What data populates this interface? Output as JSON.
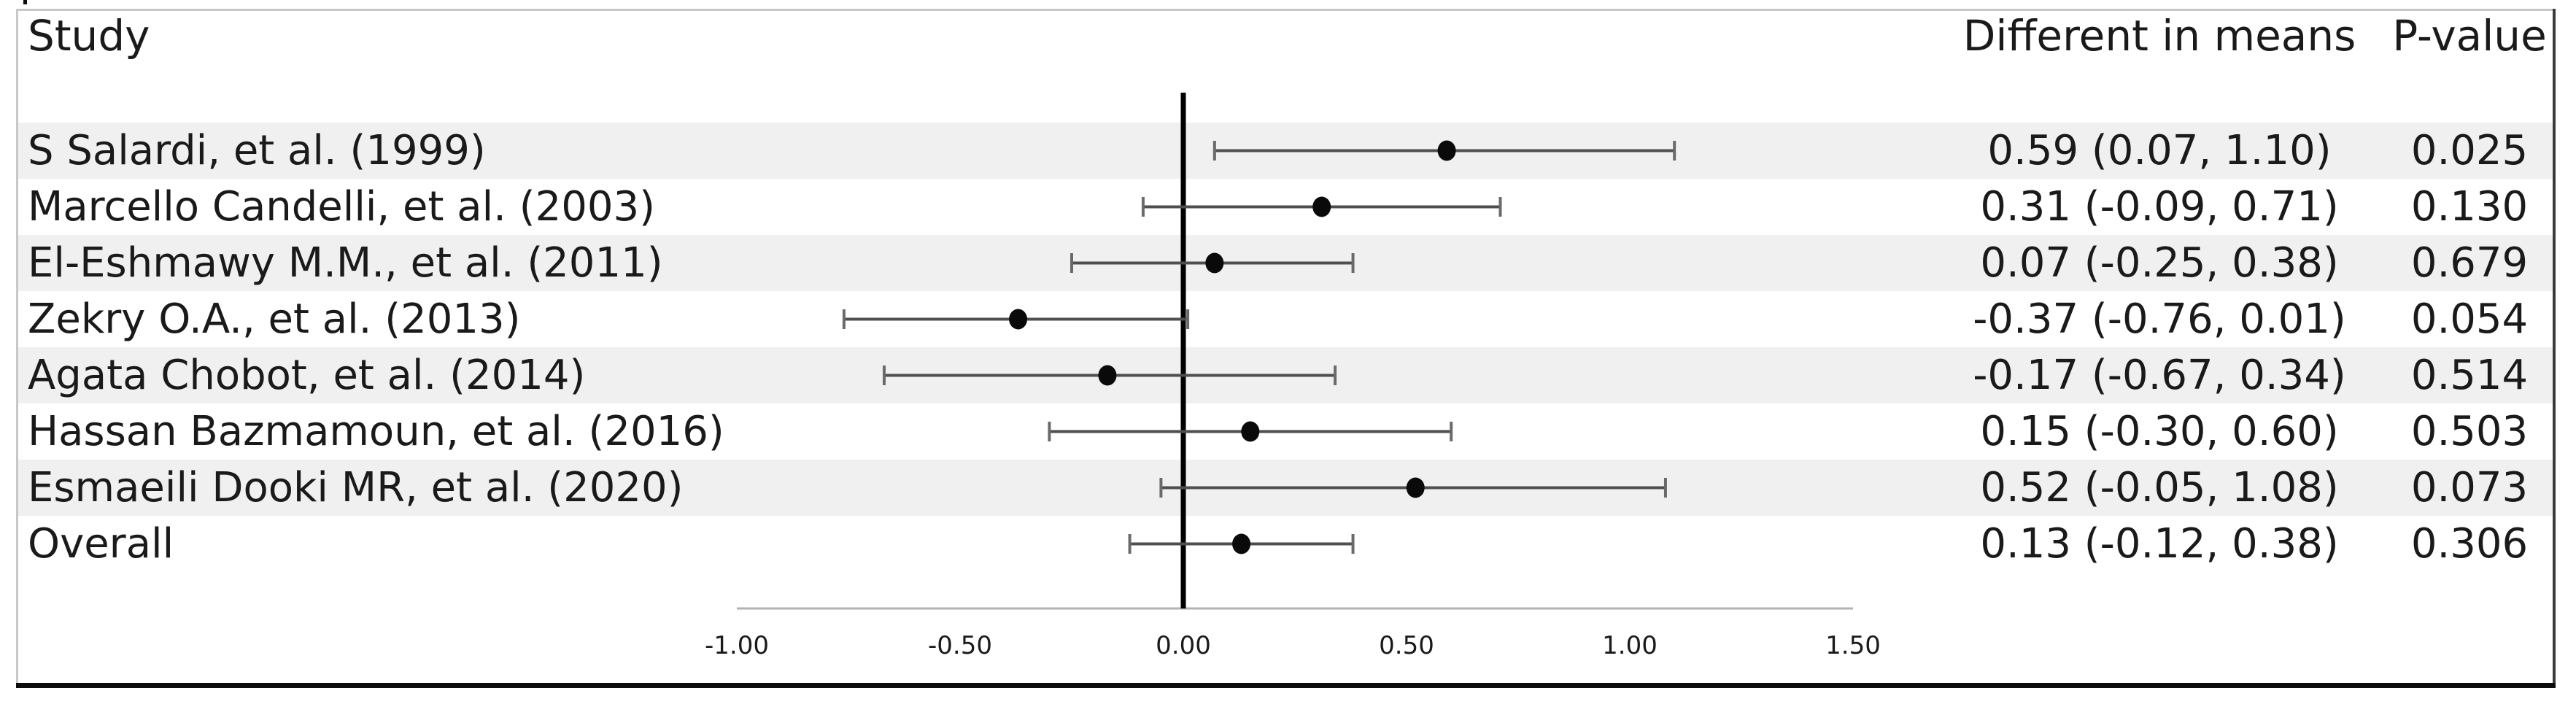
{
  "figure": {
    "type_hint": "forest-plot meta-analysis table"
  },
  "header": {
    "study": "Study",
    "means": "Different in means",
    "pvalue": "P-value"
  },
  "chart_data": {
    "type": "forest",
    "title": "",
    "xlabel": "",
    "legend": null,
    "axis": {
      "min": -1.0,
      "max": 1.5,
      "zero_line": 0,
      "tick_values": [
        -1.0,
        -0.5,
        0.0,
        0.5,
        1.0,
        1.5
      ],
      "tick_labels": [
        "-1.00",
        "-0.50",
        "0.00",
        "0.50",
        "1.00",
        "1.50"
      ]
    },
    "rows": [
      {
        "study": "S Salardi, et al. (1999)",
        "mean": 0.59,
        "ci_low": 0.07,
        "ci_high": 1.1,
        "mean_ci": "0.59 (0.07, 1.10)",
        "p": "0.025"
      },
      {
        "study": "Marcello Candelli, et al. (2003)",
        "mean": 0.31,
        "ci_low": -0.09,
        "ci_high": 0.71,
        "mean_ci": "0.31 (-0.09, 0.71)",
        "p": "0.130"
      },
      {
        "study": "El-Eshmawy M.M., et al. (2011)",
        "mean": 0.07,
        "ci_low": -0.25,
        "ci_high": 0.38,
        "mean_ci": "0.07 (-0.25, 0.38)",
        "p": "0.679"
      },
      {
        "study": "Zekry O.A., et al. (2013)",
        "mean": -0.37,
        "ci_low": -0.76,
        "ci_high": 0.01,
        "mean_ci": "-0.37 (-0.76, 0.01)",
        "p": "0.054"
      },
      {
        "study": "Agata Chobot, et al. (2014)",
        "mean": -0.17,
        "ci_low": -0.67,
        "ci_high": 0.34,
        "mean_ci": "-0.17 (-0.67, 0.34)",
        "p": "0.514"
      },
      {
        "study": "Hassan Bazmamoun, et al. (2016)",
        "mean": 0.15,
        "ci_low": -0.3,
        "ci_high": 0.6,
        "mean_ci": "0.15 (-0.30, 0.60)",
        "p": "0.503"
      },
      {
        "study": "Esmaeili Dooki MR, et al. (2020)",
        "mean": 0.52,
        "ci_low": -0.05,
        "ci_high": 1.08,
        "mean_ci": "0.52 (-0.05, 1.08)",
        "p": "0.073"
      },
      {
        "study": "Overall",
        "mean": 0.13,
        "ci_low": -0.12,
        "ci_high": 0.38,
        "mean_ci": "0.13 (-0.12, 0.38)",
        "p": "0.306"
      }
    ]
  },
  "colors": {
    "text": "#1a1a1a",
    "stripe": "#f0f0f0",
    "ci_line": "#4f4f4f",
    "ci_cap": "#6a6a6a",
    "marker": "#0a0a0a",
    "zero_line": "#000000",
    "axis_line": "#b3b3b3",
    "border_light": "#c8c8c8",
    "border_dark": "#3a3a3a",
    "bottom_bar": "#0d0d0d"
  }
}
